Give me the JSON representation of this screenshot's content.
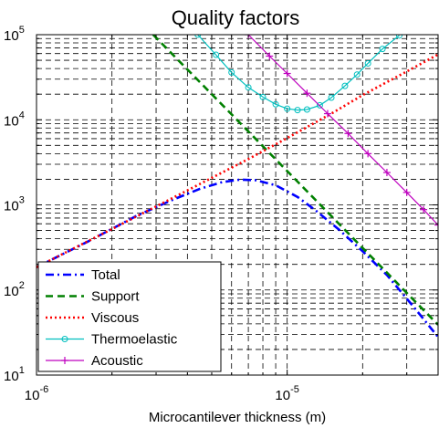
{
  "chart_data": {
    "type": "line",
    "title": "Quality factors",
    "xlabel": "Microcantilever thickness (m)",
    "ylabel": "",
    "x_scale": "log",
    "y_scale": "log",
    "xlim": [
      1e-06,
      4e-05
    ],
    "ylim": [
      10,
      100000
    ],
    "grid": true,
    "legend_position": "bottom-left",
    "x_ticks": [
      {
        "value": 1e-06,
        "base": "10",
        "exp": "-6"
      },
      {
        "value": 1e-05,
        "base": "10",
        "exp": "-5"
      }
    ],
    "y_ticks": [
      {
        "value": 10,
        "base": "10",
        "exp": "1"
      },
      {
        "value": 100,
        "base": "10",
        "exp": "2"
      },
      {
        "value": 1000,
        "base": "10",
        "exp": "3"
      },
      {
        "value": 10000,
        "base": "10",
        "exp": "4"
      },
      {
        "value": 100000,
        "base": "10",
        "exp": "5"
      }
    ],
    "series": [
      {
        "name": "Total",
        "color": "#0000ff",
        "style": "dash-dot",
        "marker": "none",
        "x": [
          1e-06,
          1.6e-06,
          2.5e-06,
          3.5e-06,
          4.5e-06,
          5.5e-06,
          6.5e-06,
          7.5e-06,
          9e-06,
          1.1e-05,
          1.3e-05,
          1.6e-05,
          2e-05,
          2.5e-05,
          3.2e-05,
          4e-05
        ],
        "y": [
          185,
          370,
          740,
          1150,
          1550,
          1850,
          1980,
          1950,
          1700,
          1240,
          860,
          520,
          285,
          150,
          63,
          28
        ]
      },
      {
        "name": "Support",
        "color": "#008000",
        "style": "dashed",
        "marker": "none",
        "x": [
          2.92e-06,
          5e-06,
          7e-06,
          1e-05,
          1.5e-05,
          2e-05,
          2.5e-05,
          3.2e-05,
          4e-05
        ],
        "y": [
          100000,
          20000,
          7300,
          2500,
          740,
          312,
          160,
          76,
          39
        ]
      },
      {
        "name": "Viscous",
        "color": "#ff0000",
        "style": "dotted",
        "marker": "none",
        "x": [
          1e-06,
          2e-06,
          4e-06,
          7e-06,
          1e-05,
          1.5e-05,
          2e-05,
          3e-05,
          4e-05
        ],
        "y": [
          185,
          520,
          1480,
          3450,
          6100,
          11800,
          19500,
          37000,
          58500
        ]
      },
      {
        "name": "Thermoelastic",
        "color": "#00bfbf",
        "style": "solid",
        "marker": "circle",
        "x": [
          4.4e-06,
          5.2e-06,
          6e-06,
          7e-06,
          8e-06,
          9e-06,
          1e-05,
          1.1e-05,
          1.2e-05,
          1.35e-05,
          1.5e-05,
          1.7e-05,
          1.9e-05,
          2.1e-05,
          2.4e-05,
          2.8e-05
        ],
        "y": [
          100000,
          58000,
          36000,
          24000,
          18500,
          15200,
          13500,
          13000,
          13200,
          14800,
          18200,
          25000,
          34000,
          46000,
          68000,
          98000
        ]
      },
      {
        "name": "Acoustic",
        "color": "#bf00bf",
        "style": "solid",
        "marker": "plus",
        "x": [
          7e-06,
          8.5e-06,
          1e-05,
          1.2e-05,
          1.45e-05,
          1.75e-05,
          2.1e-05,
          2.5e-05,
          3e-05,
          3.5e-05,
          4e-05
        ],
        "y": [
          100000,
          56000,
          35000,
          20500,
          11800,
          6900,
          4000,
          2400,
          1400,
          880,
          580
        ]
      }
    ]
  }
}
